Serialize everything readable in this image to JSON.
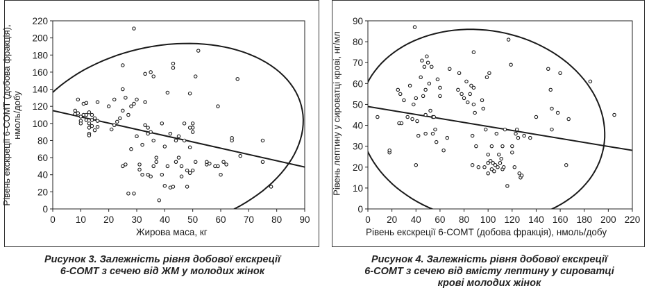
{
  "charts": [
    {
      "ylabel_line1": "Рівень екскреції 6-СОМТ (добова фракція),",
      "ylabel_line2": "нмоль/добу",
      "xlabel": "Жирова маса, кг",
      "caption_line1": "Рисунок 3.  Залежність рівня добової екскреції",
      "caption_line2": "6-СОМТ з сечею від ЖМ у молодих жінок",
      "caption_line3": ""
    },
    {
      "ylabel_line1": "Рівень лептину у сироватці крові, нг/мл",
      "ylabel_line2": "",
      "xlabel": "Рівень екскреції 6-СОМТ (добова фракція), нмоль/добу",
      "caption_line1": "Рисунок 4.  Залежність рівня добової екскреції",
      "caption_line2": "6-СОМТ з сечею від вмісту лептину у сироватці",
      "caption_line3": "крові молодих жінок"
    }
  ],
  "chart_data": [
    {
      "type": "scatter",
      "title": "",
      "xlabel": "Жирова маса, кг",
      "ylabel": "Рівень екскреції 6-СОМТ (добова фракція), нмоль/добу",
      "xlim": [
        0,
        90
      ],
      "ylim": [
        0,
        220
      ],
      "xticks": [
        0,
        10,
        20,
        30,
        40,
        50,
        60,
        70,
        80,
        90
      ],
      "yticks": [
        0,
        20,
        40,
        60,
        80,
        100,
        120,
        140,
        160,
        180,
        200,
        220
      ],
      "grid": false,
      "regression_line": [
        [
          0,
          115
        ],
        [
          90,
          49
        ]
      ],
      "confidence_ellipse": {
        "center": [
          39,
          83
        ],
        "rx": 44,
        "ry": 112,
        "angle_deg": -35
      },
      "points": [
        [
          8,
          115
        ],
        [
          8,
          111
        ],
        [
          9,
          128
        ],
        [
          9,
          112
        ],
        [
          10,
          108
        ],
        [
          10,
          103
        ],
        [
          10,
          100
        ],
        [
          11,
          123
        ],
        [
          11,
          110
        ],
        [
          12,
          124
        ],
        [
          12,
          110
        ],
        [
          12,
          104
        ],
        [
          13,
          100
        ],
        [
          13,
          95
        ],
        [
          13,
          88
        ],
        [
          13,
          86
        ],
        [
          13,
          113
        ],
        [
          14,
          97
        ],
        [
          14,
          104
        ],
        [
          14,
          110
        ],
        [
          15,
          106
        ],
        [
          15,
          92
        ],
        [
          16,
          103
        ],
        [
          16,
          96
        ],
        [
          16,
          125
        ],
        [
          20,
          120
        ],
        [
          21,
          93
        ],
        [
          22,
          128
        ],
        [
          22,
          98
        ],
        [
          23,
          102
        ],
        [
          24,
          106
        ],
        [
          25,
          140
        ],
        [
          25,
          168
        ],
        [
          25,
          115
        ],
        [
          25,
          50
        ],
        [
          26,
          130
        ],
        [
          26,
          52
        ],
        [
          27,
          18
        ],
        [
          27,
          110
        ],
        [
          28,
          120
        ],
        [
          28,
          70
        ],
        [
          29,
          211
        ],
        [
          29,
          18
        ],
        [
          29,
          123
        ],
        [
          30,
          128
        ],
        [
          30,
          85
        ],
        [
          31,
          52
        ],
        [
          31,
          46
        ],
        [
          32,
          75
        ],
        [
          32,
          40
        ],
        [
          33,
          125
        ],
        [
          33,
          98
        ],
        [
          33,
          158
        ],
        [
          34,
          88
        ],
        [
          34,
          95
        ],
        [
          34,
          40
        ],
        [
          35,
          90
        ],
        [
          35,
          160
        ],
        [
          35,
          38
        ],
        [
          36,
          155
        ],
        [
          36,
          80
        ],
        [
          36,
          50
        ],
        [
          37,
          60
        ],
        [
          37,
          55
        ],
        [
          38,
          10
        ],
        [
          39,
          100
        ],
        [
          39,
          40
        ],
        [
          40,
          27
        ],
        [
          40,
          73
        ],
        [
          41,
          136
        ],
        [
          41,
          50
        ],
        [
          42,
          88
        ],
        [
          42,
          25
        ],
        [
          43,
          165
        ],
        [
          43,
          26
        ],
        [
          43,
          170
        ],
        [
          44,
          55
        ],
        [
          44,
          80
        ],
        [
          45,
          85
        ],
        [
          45,
          60
        ],
        [
          46,
          38
        ],
        [
          46,
          50
        ],
        [
          47,
          80
        ],
        [
          47,
          100
        ],
        [
          48,
          45
        ],
        [
          48,
          26
        ],
        [
          49,
          95
        ],
        [
          49,
          72
        ],
        [
          49,
          42
        ],
        [
          49,
          135
        ],
        [
          50,
          100
        ],
        [
          50,
          95
        ],
        [
          50,
          90
        ],
        [
          50,
          45
        ],
        [
          51,
          155
        ],
        [
          51,
          55
        ],
        [
          52,
          185
        ],
        [
          55,
          52
        ],
        [
          55,
          55
        ],
        [
          56,
          53
        ],
        [
          58,
          50
        ],
        [
          59,
          120
        ],
        [
          59,
          50
        ],
        [
          60,
          40
        ],
        [
          61,
          55
        ],
        [
          62,
          52
        ],
        [
          64,
          83
        ],
        [
          64,
          80
        ],
        [
          66,
          152
        ],
        [
          67,
          62
        ],
        [
          75,
          55
        ],
        [
          75,
          80
        ],
        [
          78,
          26
        ]
      ]
    },
    {
      "type": "scatter",
      "title": "",
      "xlabel": "Рівень екскреції 6-СОМТ (добова фракція), нмоль/добу",
      "ylabel": "Рівень лептину у сироватці крові, нг/мл",
      "xlim": [
        0,
        220
      ],
      "ylim": [
        0,
        90
      ],
      "xticks": [
        0,
        20,
        40,
        60,
        80,
        100,
        120,
        140,
        160,
        180,
        200,
        220
      ],
      "yticks": [
        0,
        10,
        20,
        30,
        40,
        50,
        60,
        70,
        80,
        90
      ],
      "grid": false,
      "regression_line": [
        [
          0,
          49
        ],
        [
          220,
          28
        ]
      ],
      "confidence_ellipse": {
        "center": [
          95,
          40
        ],
        "rx": 103,
        "ry": 46,
        "angle_deg": -8
      },
      "points": [
        [
          8,
          44
        ],
        [
          18,
          27
        ],
        [
          18,
          28
        ],
        [
          25,
          57
        ],
        [
          26,
          41
        ],
        [
          27,
          55
        ],
        [
          28,
          41
        ],
        [
          30,
          52
        ],
        [
          33,
          44
        ],
        [
          35,
          59
        ],
        [
          37,
          43
        ],
        [
          38,
          50
        ],
        [
          39,
          87
        ],
        [
          40,
          53
        ],
        [
          40,
          21
        ],
        [
          41,
          42
        ],
        [
          42,
          35
        ],
        [
          44,
          63
        ],
        [
          45,
          71
        ],
        [
          46,
          54
        ],
        [
          47,
          68
        ],
        [
          48,
          57
        ],
        [
          48,
          45
        ],
        [
          48,
          36
        ],
        [
          49,
          73
        ],
        [
          50,
          70
        ],
        [
          51,
          60
        ],
        [
          52,
          47
        ],
        [
          53,
          68
        ],
        [
          54,
          44
        ],
        [
          54,
          36
        ],
        [
          55,
          44
        ],
        [
          56,
          38
        ],
        [
          57,
          32
        ],
        [
          58,
          62
        ],
        [
          60,
          58
        ],
        [
          60,
          54
        ],
        [
          63,
          28
        ],
        [
          66,
          34
        ],
        [
          68,
          67
        ],
        [
          75,
          57
        ],
        [
          76,
          65
        ],
        [
          78,
          55
        ],
        [
          80,
          53
        ],
        [
          82,
          61
        ],
        [
          83,
          51
        ],
        [
          85,
          55
        ],
        [
          86,
          59
        ],
        [
          87,
          21
        ],
        [
          87,
          35
        ],
        [
          88,
          75
        ],
        [
          88,
          58
        ],
        [
          88,
          50
        ],
        [
          89,
          46
        ],
        [
          90,
          30
        ],
        [
          92,
          20
        ],
        [
          95,
          52
        ],
        [
          96,
          48
        ],
        [
          97,
          20
        ],
        [
          98,
          38
        ],
        [
          99,
          63
        ],
        [
          100,
          26
        ],
        [
          100,
          22
        ],
        [
          100,
          17
        ],
        [
          101,
          65
        ],
        [
          102,
          23
        ],
        [
          103,
          30
        ],
        [
          103,
          19
        ],
        [
          104,
          22
        ],
        [
          105,
          18
        ],
        [
          106,
          21
        ],
        [
          107,
          36
        ],
        [
          108,
          20
        ],
        [
          109,
          26
        ],
        [
          110,
          22
        ],
        [
          111,
          24
        ],
        [
          112,
          30
        ],
        [
          112,
          19
        ],
        [
          113,
          20
        ],
        [
          114,
          38
        ],
        [
          116,
          11
        ],
        [
          117,
          81
        ],
        [
          119,
          69
        ],
        [
          120,
          30
        ],
        [
          120,
          27
        ],
        [
          122,
          20
        ],
        [
          123,
          36
        ],
        [
          124,
          38
        ],
        [
          125,
          34
        ],
        [
          126,
          17
        ],
        [
          127,
          15
        ],
        [
          128,
          16
        ],
        [
          130,
          35
        ],
        [
          135,
          34
        ],
        [
          140,
          44
        ],
        [
          150,
          67
        ],
        [
          152,
          57
        ],
        [
          153,
          48
        ],
        [
          153,
          38
        ],
        [
          158,
          46
        ],
        [
          160,
          65
        ],
        [
          165,
          21
        ],
        [
          167,
          43
        ],
        [
          185,
          61
        ],
        [
          205,
          45
        ]
      ]
    }
  ]
}
